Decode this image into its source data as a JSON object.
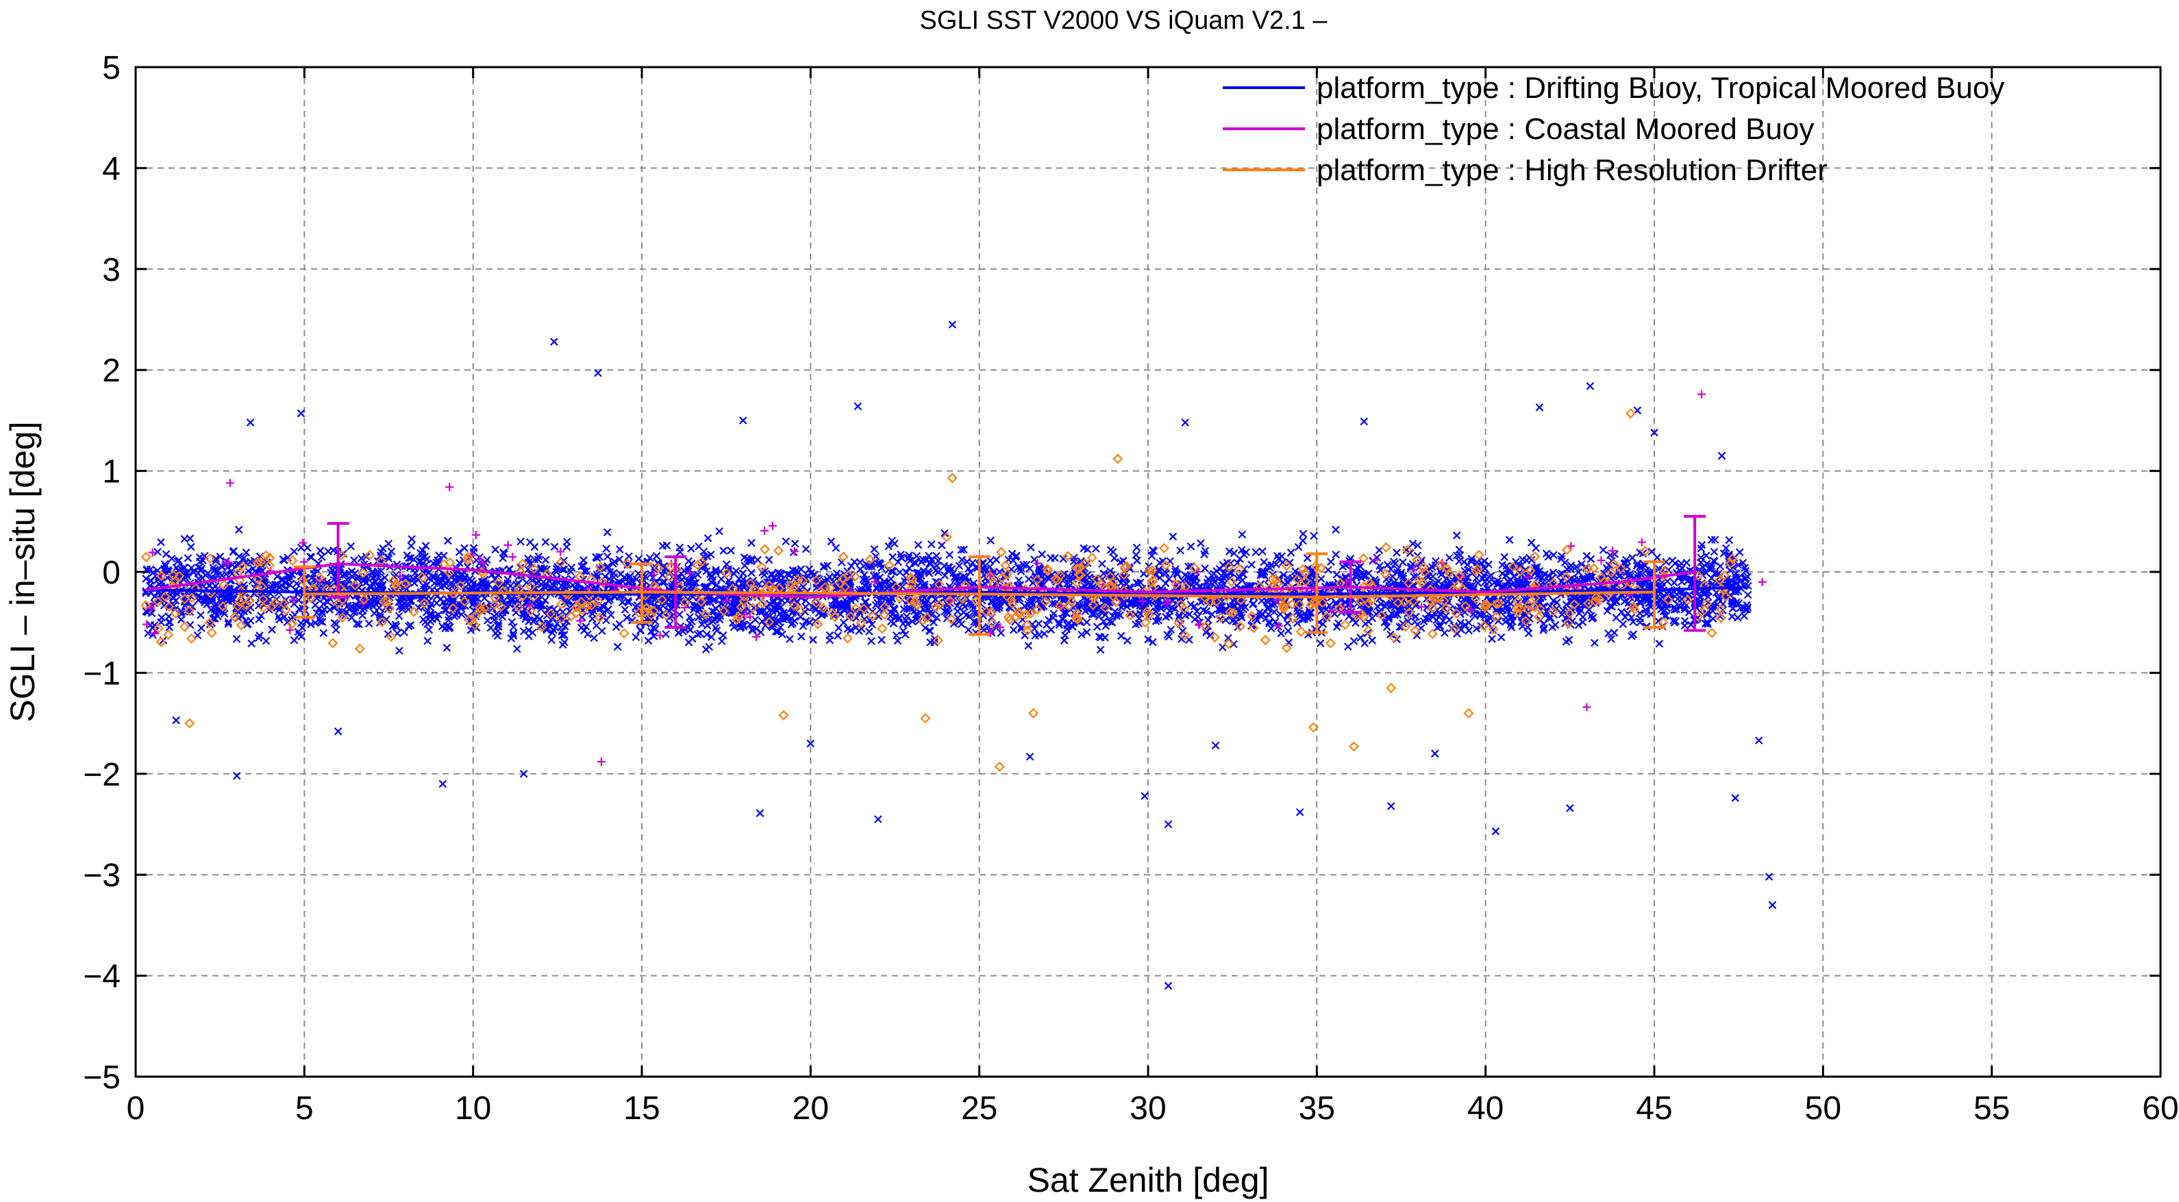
{
  "chart_data": {
    "type": "scatter",
    "title": "SGLI SST V2000 VS iQuam V2.1  –",
    "xlabel": "Sat Zenith [deg]",
    "ylabel": "SGLI – in–situ [deg]",
    "xlim": [
      0,
      60
    ],
    "ylim": [
      -5,
      5
    ],
    "x_ticks": [
      "0",
      "5",
      "10",
      "15",
      "20",
      "25",
      "30",
      "35",
      "40",
      "45",
      "50",
      "55",
      "60"
    ],
    "y_ticks": [
      "5",
      "4",
      "3",
      "2",
      "1",
      "0",
      "−1",
      "−2",
      "−3",
      "−4",
      "−5"
    ],
    "grid": true,
    "legend_position": "top-right",
    "series": [
      {
        "name": "platform_type : Drifting Buoy, Tropical Moored Buoy",
        "color": "#0000ff",
        "marker": "x",
        "mean_line": {
          "x": [
            0.3,
            5,
            10,
            15,
            20,
            25,
            30,
            35,
            40,
            45,
            47.8
          ],
          "y": [
            -0.18,
            -0.2,
            -0.21,
            -0.22,
            -0.22,
            -0.2,
            -0.22,
            -0.22,
            -0.2,
            -0.18,
            -0.15
          ]
        },
        "outliers": [
          {
            "x": 12.4,
            "y": 2.28
          },
          {
            "x": 13.7,
            "y": 1.97
          },
          {
            "x": 24.2,
            "y": 2.45
          },
          {
            "x": 43.1,
            "y": 1.84
          },
          {
            "x": 44.5,
            "y": 1.6
          },
          {
            "x": 21.4,
            "y": 1.64
          },
          {
            "x": 4.9,
            "y": 1.57
          },
          {
            "x": 3.4,
            "y": 1.48
          },
          {
            "x": 18.0,
            "y": 1.5
          },
          {
            "x": 41.6,
            "y": 1.63
          },
          {
            "x": 36.4,
            "y": 1.49
          },
          {
            "x": 31.1,
            "y": 1.48
          },
          {
            "x": 3.0,
            "y": -2.02
          },
          {
            "x": 9.1,
            "y": -2.1
          },
          {
            "x": 11.5,
            "y": -2.0
          },
          {
            "x": 18.5,
            "y": -2.39
          },
          {
            "x": 22.0,
            "y": -2.45
          },
          {
            "x": 29.9,
            "y": -2.22
          },
          {
            "x": 30.6,
            "y": -2.5
          },
          {
            "x": 34.5,
            "y": -2.38
          },
          {
            "x": 37.2,
            "y": -2.32
          },
          {
            "x": 40.3,
            "y": -2.57
          },
          {
            "x": 42.5,
            "y": -2.34
          },
          {
            "x": 47.4,
            "y": -2.24
          },
          {
            "x": 48.4,
            "y": -3.02
          },
          {
            "x": 48.5,
            "y": -3.3
          },
          {
            "x": 30.6,
            "y": -4.1
          },
          {
            "x": 48.1,
            "y": -1.67
          },
          {
            "x": 1.2,
            "y": -1.47
          },
          {
            "x": 20.0,
            "y": -1.7
          },
          {
            "x": 26.5,
            "y": -1.83
          },
          {
            "x": 32.0,
            "y": -1.72
          },
          {
            "x": 38.5,
            "y": -1.8
          },
          {
            "x": 6.0,
            "y": -1.58
          },
          {
            "x": 45.0,
            "y": 1.38
          },
          {
            "x": 47.0,
            "y": 1.15
          }
        ]
      },
      {
        "name": "platform_type : Coastal Moored Buoy",
        "color": "#d000d0",
        "marker": "+",
        "mean_line": {
          "x": [
            0.3,
            6,
            10,
            12,
            16,
            20,
            25,
            30,
            36,
            40,
            44,
            46.2
          ],
          "y": [
            -0.18,
            0.08,
            0.02,
            -0.05,
            -0.2,
            -0.25,
            -0.15,
            -0.2,
            -0.15,
            -0.2,
            -0.1,
            0.0
          ]
        },
        "errorbars": [
          {
            "x": 6,
            "y": 0.08,
            "low": -0.25,
            "high": 0.48
          },
          {
            "x": 16,
            "y": -0.2,
            "low": -0.55,
            "high": 0.15
          },
          {
            "x": 36,
            "y": -0.15,
            "low": -0.4,
            "high": 0.1
          },
          {
            "x": 46.2,
            "y": 0.0,
            "low": -0.58,
            "high": 0.55
          }
        ],
        "outliers": [
          {
            "x": 2.8,
            "y": 0.88
          },
          {
            "x": 9.3,
            "y": 0.84
          },
          {
            "x": 13.8,
            "y": -1.88
          },
          {
            "x": 43.0,
            "y": -1.34
          },
          {
            "x": 46.4,
            "y": 1.76
          },
          {
            "x": 48.2,
            "y": -0.1
          }
        ]
      },
      {
        "name": "platform_type : High Resolution Drifter",
        "color": "#ff8010",
        "marker": "diamond",
        "mean_line": {
          "x": [
            5,
            15,
            25,
            35,
            45
          ],
          "y": [
            -0.22,
            -0.2,
            -0.22,
            -0.25,
            -0.2
          ]
        },
        "errorbars": [
          {
            "x": 5,
            "y": -0.22,
            "low": -0.45,
            "high": 0.05
          },
          {
            "x": 15,
            "y": -0.2,
            "low": -0.5,
            "high": 0.08
          },
          {
            "x": 25,
            "y": -0.22,
            "low": -0.62,
            "high": 0.15
          },
          {
            "x": 35,
            "y": -0.25,
            "low": -0.6,
            "high": 0.18
          },
          {
            "x": 45,
            "y": -0.2,
            "low": -0.55,
            "high": 0.1
          }
        ],
        "outliers": [
          {
            "x": 1.6,
            "y": -1.5
          },
          {
            "x": 19.2,
            "y": -1.42
          },
          {
            "x": 23.4,
            "y": -1.45
          },
          {
            "x": 25.6,
            "y": -1.93
          },
          {
            "x": 26.6,
            "y": -1.4
          },
          {
            "x": 29.1,
            "y": 1.12
          },
          {
            "x": 24.2,
            "y": 0.93
          },
          {
            "x": 34.9,
            "y": -1.54
          },
          {
            "x": 36.1,
            "y": -1.73
          },
          {
            "x": 37.2,
            "y": -1.15
          },
          {
            "x": 39.5,
            "y": -1.4
          },
          {
            "x": 44.3,
            "y": 1.57
          }
        ]
      }
    ]
  }
}
